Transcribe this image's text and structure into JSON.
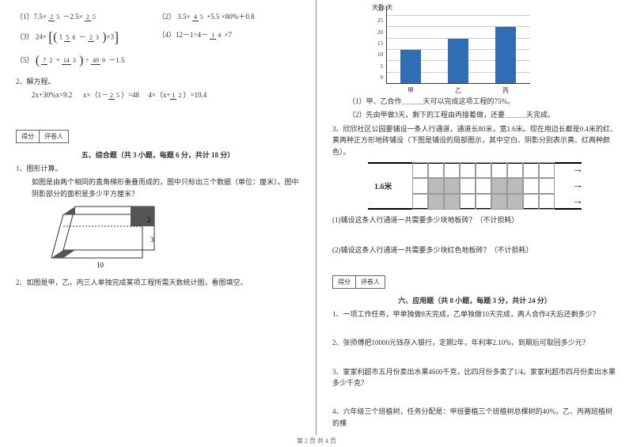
{
  "left": {
    "f1a": "（1）7.5×",
    "f1b": "－2.5×",
    "f2a": "（2）",
    "f2b": "×80%＋0.8",
    "f3a": "（3）",
    "f3b": "24×",
    "f3_inner1a": "1",
    "f3_inner1b": "－",
    "f3c": "×3",
    "f4a": "（4）12－1÷4－",
    "f4b": "×7",
    "f5a": "（5）",
    "f5b": "÷",
    "f5c": "－1.5",
    "q2_title": "2、解方程。",
    "eq_row": "2x+30%x=9.2        x×（1－    ）=48        4×（x+    ）=10.4",
    "eq_f1n": "2",
    "eq_f1d": "5",
    "eq_f2n": "1",
    "eq_f2d": "2",
    "scorebox_a": "得分",
    "scorebox_b": "评卷人",
    "sec5_title": "五、综合题（共 3 小题，每题 6 分，共计 18 分）",
    "s5_q1_title": "1、图形计算。",
    "s5_q1_body": "如图是由两个相同的直角梯形重叠而成的，图中只标出三个数据（单位：厘米）。图中阴影部分的面积是多少平方厘米？",
    "trap_w": "10",
    "trap_h": "3",
    "trap_top": "2",
    "s5_q2": "2、如图是甲，乙，丙三人单独完成某项工程所需天数统计图，看图填空。",
    "fracs": {
      "two_fifths_n": "2",
      "two_fifths_d": "5",
      "four_fifths_n": "4",
      "four_fifths_d": "5",
      "threefive": "3.5×",
      "fivefive": "+5.5",
      "five_sixths_n": "5",
      "five_sixths_d": "6",
      "two_thirds_n": "2",
      "two_thirds_d": "3",
      "one_fourth_n": "1",
      "one_fourth_d": "4",
      "seven_two_n": "7",
      "seven_two_d": "2",
      "fourteen_three_n": "14",
      "fourteen_three_d": "3",
      "fortynine_nine_n": "49",
      "fortynine_nine_d": "9"
    }
  },
  "right": {
    "chart": {
      "ylabel": "天数/天",
      "ymax": 30,
      "ytick_step": 5,
      "categories": [
        "甲",
        "乙",
        "丙"
      ],
      "values": [
        15,
        20,
        25
      ],
      "bar_color": "#2f6db5",
      "grid_color": "#cccccc"
    },
    "r_q1": "（1）甲、乙合作＿＿＿天可以完成这项工程的75%。",
    "r_q2": "（2）先由甲做3天，剩下的工程由丙接着做，还要＿＿＿天完成。",
    "r3": "3、欣欣社区公园要铺设一条人行通道，通道长80米，宽1.6米。现在用边长都是0.4米的红、黄两种正方形地砖铺设（下图是铺设的局部图示，其中空白、阴影分别表示黄、红两种颜色）。",
    "tiles_label": "1.6米",
    "r3_q1": "(1)铺设这条人行通道一共需要多少块地板砖？（不计损耗）",
    "r3_q2": "(2)铺设这条人行通道一共需要多少块红色地板砖？（不计损耗）",
    "sec6_title": "六、应用题（共 8 小题，每题 3 分，共计 24 分）",
    "a1": "1、一项工作任务，甲单独做8天完成，乙单独做10天完成，两人合作4天后还剩多少？",
    "a2": "2、张师傅把10000元钱存入银行，定期2年，年利率2.10%，到期后可取回多少元？",
    "a3": "3、家家利超市五月份卖出水果4600千克，比四月份多卖了1/4。家家利超市四月份卖出水果多少千克？",
    "a4": "4、六年级三个班植树，任务分配是：甲班要植三个班植树总棵树的40%，乙、丙两班植树的棵"
  },
  "footer": "第 2 页 共 4 页"
}
